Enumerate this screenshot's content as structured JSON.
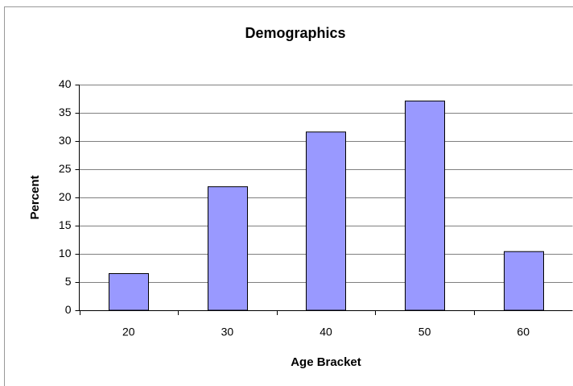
{
  "chart_data": {
    "type": "bar",
    "title": "Demographics",
    "x_label": "Age Bracket",
    "y_label": "Percent",
    "categories": [
      "20",
      "30",
      "40",
      "50",
      "60"
    ],
    "values": [
      6.5,
      21.9,
      31.6,
      37.1,
      10.4
    ],
    "color": "#9999ff",
    "ylim": [
      0,
      40
    ],
    "yticks": [
      0,
      5,
      10,
      15,
      20,
      25,
      30,
      35,
      40
    ],
    "grid": true
  }
}
